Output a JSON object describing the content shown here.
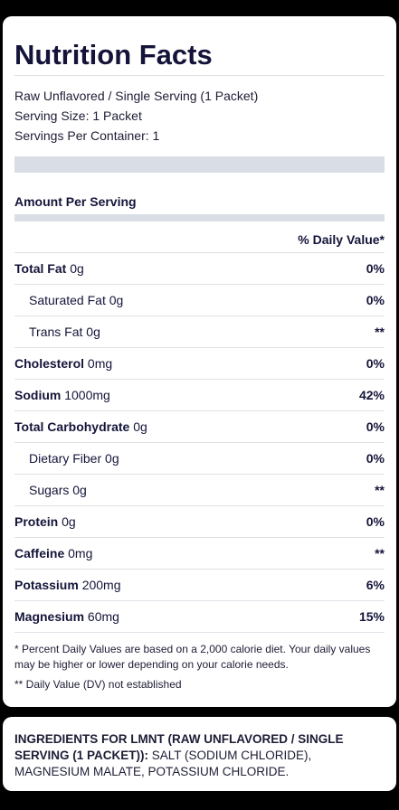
{
  "facts": {
    "title": "Nutrition Facts",
    "serving_desc": "Raw Unflavored / Single Serving (1 Packet)",
    "serving_size": "Serving Size: 1 Packet",
    "servings_per_container": "Servings Per Container: 1",
    "amount_per_serving": "Amount Per Serving",
    "dv_header": "% Daily Value*",
    "rows": [
      {
        "label": "Total Fat",
        "value": "0g",
        "pct": "0%",
        "bold": true
      },
      {
        "label": "Saturated Fat",
        "value": "0g",
        "pct": "0%",
        "bold": false
      },
      {
        "label": "Trans Fat",
        "value": "0g",
        "pct": "**",
        "bold": false
      },
      {
        "label": "Cholesterol",
        "value": "0mg",
        "pct": "0%",
        "bold": true
      },
      {
        "label": "Sodium",
        "value": "1000mg",
        "pct": "42%",
        "bold": true
      },
      {
        "label": "Total Carbohydrate",
        "value": "0g",
        "pct": "0%",
        "bold": true
      },
      {
        "label": "Dietary Fiber",
        "value": "0g",
        "pct": "0%",
        "bold": false
      },
      {
        "label": "Sugars",
        "value": "0g",
        "pct": "**",
        "bold": false
      },
      {
        "label": "Protein",
        "value": "0g",
        "pct": "0%",
        "bold": true
      },
      {
        "label": "Caffeine",
        "value": "0mg",
        "pct": "**",
        "bold": true
      },
      {
        "label": "Potassium",
        "value": "200mg",
        "pct": "6%",
        "bold": true
      },
      {
        "label": "Magnesium",
        "value": "60mg",
        "pct": "15%",
        "bold": true
      }
    ],
    "footnote1": "* Percent Daily Values are based on a 2,000 calorie diet. Your daily values may be higher or lower depending on your calorie needs.",
    "footnote2": "** Daily Value (DV) not established"
  },
  "ingredients": {
    "heading": "INGREDIENTS FOR LMNT (RAW UNFLAVORED / SINGLE SERVING (1 PACKET)):",
    "text": " SALT (SODIUM CHLORIDE), MAGNESIUM MALATE, POTASSIUM CHLORIDE."
  }
}
